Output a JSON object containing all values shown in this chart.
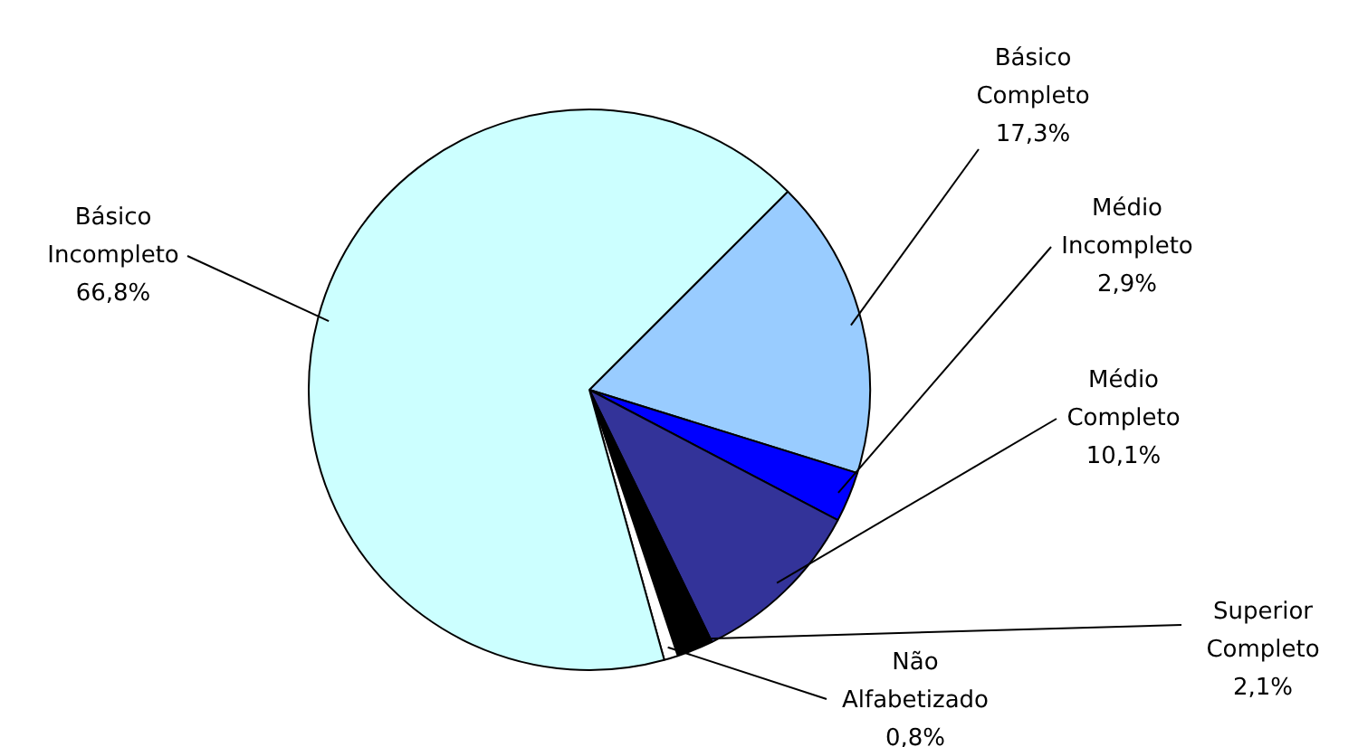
{
  "chart_data": {
    "type": "pie",
    "categories": [
      "Básico Completo",
      "Médio Incompleto",
      "Médio Completo",
      "Superior Completo",
      "Não Alfabetizado",
      "Básico Incompleto"
    ],
    "values": [
      17.3,
      2.9,
      10.1,
      2.1,
      0.8,
      66.8
    ],
    "value_labels": [
      "17,3%",
      "2,9%",
      "10,1%",
      "2,1%",
      "0,8%",
      "66,8%"
    ],
    "colors": [
      "#99ccff",
      "#0000ff",
      "#333399",
      "#000000",
      "#ffffff",
      "#ccffff"
    ]
  }
}
